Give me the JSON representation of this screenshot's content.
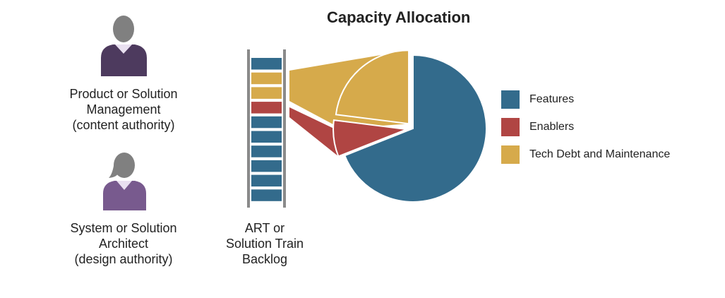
{
  "title": "Capacity Allocation",
  "roles": {
    "product": {
      "lines": [
        "Product or Solution",
        "Management",
        "(content authority)"
      ],
      "color": "#4d3a5e"
    },
    "architect": {
      "lines": [
        "System or Solution",
        "Architect",
        "(design authority)"
      ],
      "color": "#785a8e"
    }
  },
  "backlog": {
    "caption_lines": [
      "ART or",
      "Solution Train",
      "Backlog"
    ],
    "items": [
      "features",
      "tech-debt",
      "tech-debt",
      "enablers",
      "features",
      "features",
      "features",
      "features",
      "features",
      "features"
    ]
  },
  "chart_data": {
    "type": "pie",
    "title": "Capacity Allocation",
    "slices": [
      {
        "label": "Features",
        "value": 69,
        "color": "#336b8c"
      },
      {
        "label": "Enablers",
        "value": 8,
        "color": "#b04543"
      },
      {
        "label": "Tech Debt and Maintenance",
        "value": 23,
        "color": "#d6aa4b"
      }
    ],
    "exploded": [
      "Enablers",
      "Tech Debt and Maintenance"
    ],
    "legend_position": "right"
  }
}
